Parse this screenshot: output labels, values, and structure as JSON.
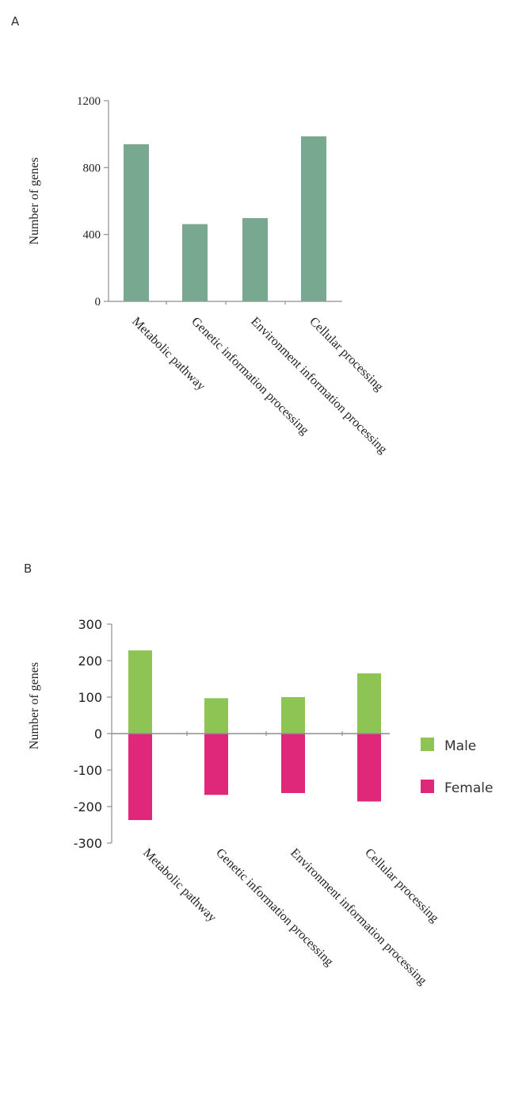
{
  "panels": [
    {
      "letter": "A",
      "chart_data": {
        "type": "bar",
        "categories": [
          "Metabolic pathway",
          "Genetic information processing",
          "Environment information processing",
          "Cellular processing"
        ],
        "series": [
          {
            "values": [
              940,
              462,
              498,
              987
            ]
          }
        ],
        "ylabel": "Number of  genes",
        "ylim": [
          0,
          1200
        ],
        "yticks": [
          "0",
          "400",
          "800",
          "1200"
        ],
        "grid": false,
        "colors": {
          "bar": "#79a890",
          "axis": "#8f8f8f"
        }
      }
    },
    {
      "letter": "B",
      "chart_data": {
        "type": "bar",
        "categories": [
          "Metabolic pathway",
          "Genetic information processing",
          "Environment information processing",
          "Cellular processing"
        ],
        "series": [
          {
            "name": "Male",
            "values": [
              228,
              97,
              100,
              165
            ],
            "color": "#8dc454"
          },
          {
            "name": "Female",
            "values": [
              -237,
              -168,
              -163,
              -186
            ],
            "color": "#e0287a"
          }
        ],
        "ylabel": "Number of  genes",
        "ylim": [
          -300,
          300
        ],
        "yticks": [
          "300",
          "200",
          "100",
          "0",
          "-100",
          "-200",
          "-300"
        ],
        "legend": "right",
        "grid": false,
        "colors": {
          "axis": "#8f8f8f"
        }
      }
    }
  ]
}
